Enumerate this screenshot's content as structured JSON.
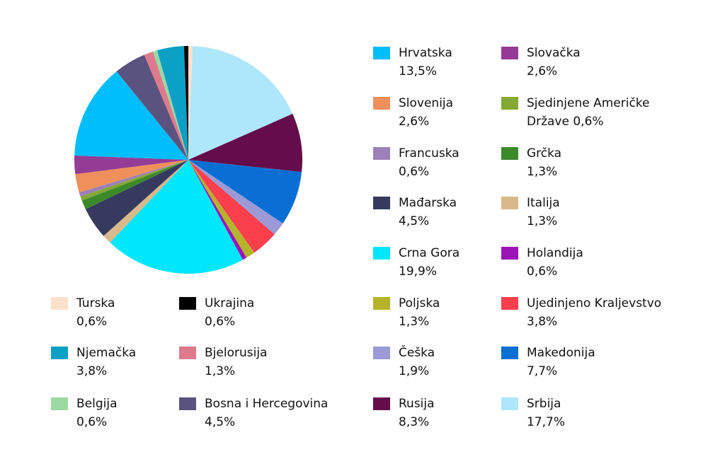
{
  "chart_data": {
    "type": "pie",
    "categories": [
      "Turska",
      "Srbija",
      "Rusija",
      "Makedonija",
      "Češka",
      "Ujedinjeno Kraljevstvo",
      "Poljska",
      "Holandija",
      "Crna Gora",
      "Italija",
      "Mađarska",
      "Grčka",
      "Sjedinjene Američke Države",
      "Francuska",
      "Slovenija",
      "Slovačka",
      "Hrvatska",
      "Bosna i Hercegovina",
      "Bjelorusija",
      "Belgija",
      "Njemačka",
      "Ukrajina"
    ],
    "values": [
      0.6,
      17.7,
      8.3,
      7.7,
      1.9,
      3.8,
      1.3,
      0.6,
      19.9,
      1.3,
      4.5,
      1.3,
      0.6,
      0.6,
      2.6,
      2.6,
      13.5,
      4.5,
      1.3,
      0.6,
      3.8,
      0.6
    ],
    "value_labels": [
      "0,6%",
      "17,7%",
      "8,3%",
      "7,7%",
      "1,9%",
      "3,8%",
      "1,3%",
      "0,6%",
      "19,9%",
      "1,3%",
      "4,5%",
      "1,3%",
      "0,6%",
      "0,6%",
      "2,6%",
      "2,6%",
      "13,5%",
      "4,5%",
      "1,3%",
      "0,6%",
      "3,8%",
      "0,6%"
    ],
    "colors": [
      "#fde0cc",
      "#aee6fb",
      "#650c4b",
      "#0a6fd2",
      "#9b9ad6",
      "#fb3f4d",
      "#b5b32b",
      "#9a14b8",
      "#00e6fb",
      "#d8b98b",
      "#363a5e",
      "#3a8a2a",
      "#83a834",
      "#9c80b7",
      "#ef8f5b",
      "#943c96",
      "#00bdfb",
      "#5a527f",
      "#dd7a8c",
      "#9ad9a2",
      "#0ba0c5",
      "#000000"
    ]
  }
}
